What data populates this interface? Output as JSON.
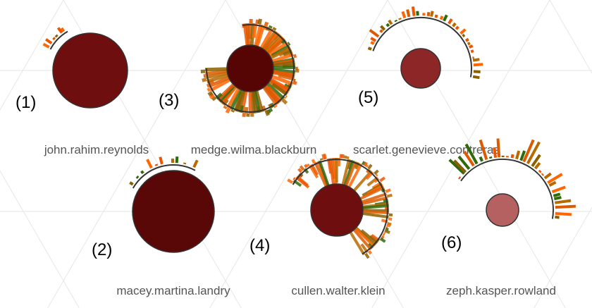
{
  "colors": {
    "background": "#ffffff",
    "grid_line": "#e6e6e6",
    "arc": "#333333",
    "ticks": [
      "#ff6600",
      "#ee5500",
      "#dd5a00",
      "#b86a00",
      "#8a5f00",
      "#2f6a0a"
    ]
  },
  "glyphs": [
    {
      "id": 1,
      "number": "(1)",
      "label": "john.rahim.reynolds",
      "circle_color": "#6e0e0e",
      "burst": "low"
    },
    {
      "id": 3,
      "number": "(3)",
      "label": "medge.wilma.blackburn",
      "circle_color": "#570404",
      "burst": "very-high"
    },
    {
      "id": 5,
      "number": "(5)",
      "label": "scarlet.genevieve.contreras",
      "circle_color": "#8d2727",
      "burst": "low"
    },
    {
      "id": 2,
      "number": "(2)",
      "label": "macey.martina.landry",
      "circle_color": "#5a0707",
      "burst": "low"
    },
    {
      "id": 4,
      "number": "(4)",
      "label": "cullen.walter.klein",
      "circle_color": "#6e0e0e",
      "burst": "high"
    },
    {
      "id": 6,
      "number": "(6)",
      "label": "zeph.kasper.rowland",
      "circle_color": "#b56161",
      "burst": "medium"
    }
  ]
}
